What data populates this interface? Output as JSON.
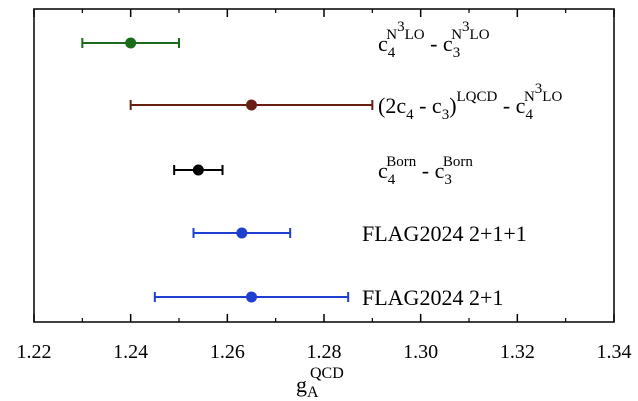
{
  "chart_data": {
    "type": "scatter",
    "title": "",
    "xlim": [
      1.22,
      1.34
    ],
    "x_ticks": [
      "1.22",
      "1.24",
      "1.26",
      "1.28",
      "1.30",
      "1.32",
      "1.34"
    ],
    "xlabel": {
      "base": "g",
      "sub": "A",
      "sup": "QCD"
    },
    "ylabel": "",
    "grid": false,
    "series": [
      {
        "value": 1.24,
        "err_low": 0.01,
        "err_high": 0.01,
        "color": "#1a6b1a",
        "label": {
          "parts": [
            {
              "t": "c"
            },
            {
              "t": "4",
              "role": "sub"
            },
            {
              "t": "N",
              "role": "sup"
            },
            {
              "t": "3",
              "role": "supsup"
            },
            {
              "t": "LO",
              "role": "sup"
            },
            {
              "t": " - c"
            },
            {
              "t": "3",
              "role": "sub"
            },
            {
              "t": "N",
              "role": "sup"
            },
            {
              "t": "3",
              "role": "supsup"
            },
            {
              "t": "LO",
              "role": "sup"
            }
          ]
        }
      },
      {
        "value": 1.265,
        "err_low": 0.025,
        "err_high": 0.025,
        "color": "#6b1f14",
        "label": {
          "parts": [
            {
              "t": "(2c"
            },
            {
              "t": "4",
              "role": "sub"
            },
            {
              "t": " - c"
            },
            {
              "t": "3",
              "role": "sub"
            },
            {
              "t": ")"
            },
            {
              "t": "LQCD",
              "role": "sup"
            },
            {
              "t": " - c"
            },
            {
              "t": "4",
              "role": "sub"
            },
            {
              "t": "N",
              "role": "sup"
            },
            {
              "t": "3",
              "role": "supsup"
            },
            {
              "t": "LO",
              "role": "sup"
            }
          ]
        }
      },
      {
        "value": 1.254,
        "err_low": 0.005,
        "err_high": 0.005,
        "color": "#000000",
        "label": {
          "parts": [
            {
              "t": "c"
            },
            {
              "t": "4",
              "role": "sub"
            },
            {
              "t": "Born",
              "role": "sup"
            },
            {
              "t": " - c"
            },
            {
              "t": "3",
              "role": "sub"
            },
            {
              "t": "Born",
              "role": "sup"
            }
          ]
        }
      },
      {
        "value": 1.263,
        "err_low": 0.01,
        "err_high": 0.01,
        "color": "#1f3fd0",
        "label": {
          "parts": [
            {
              "t": "FLAG2024 2+1+1"
            }
          ]
        }
      },
      {
        "value": 1.265,
        "err_low": 0.02,
        "err_high": 0.02,
        "color": "#1f3fd0",
        "label": {
          "parts": [
            {
              "t": "FLAG2024 2+1"
            }
          ]
        }
      }
    ]
  }
}
